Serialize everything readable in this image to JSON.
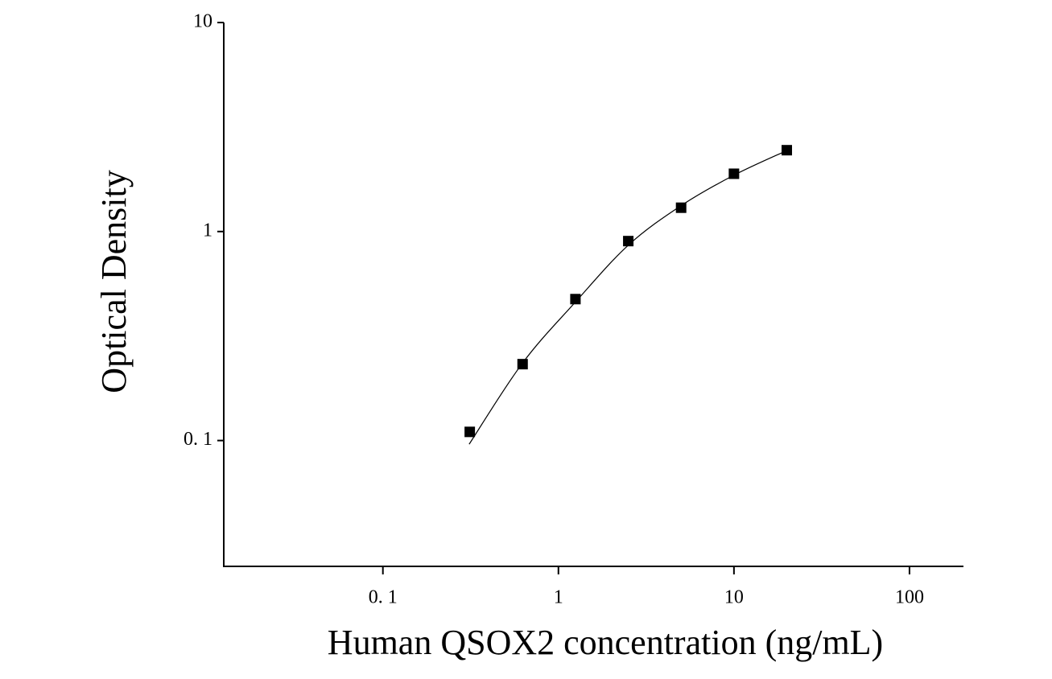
{
  "chart_data": {
    "type": "scatter",
    "xlabel": "Human QSOX2 concentration (ng/mL)",
    "ylabel": "Optical Density",
    "xscale": "log",
    "yscale": "log",
    "x": [
      0.3125,
      0.625,
      1.25,
      2.5,
      5,
      10,
      20
    ],
    "series": [
      {
        "color": "#000000",
        "values": [
          0.11,
          0.232,
          0.475,
          0.9,
          1.3,
          1.89,
          2.45
        ]
      }
    ],
    "fit": {
      "color": "#000000",
      "x": [
        0.31,
        0.625,
        1.25,
        2.5,
        5,
        10,
        20
      ],
      "values": [
        0.096,
        0.235,
        0.46,
        0.86,
        1.33,
        1.86,
        2.44
      ]
    },
    "xlim": [
      0.0124,
      203
    ],
    "ylim": [
      0.025,
      10
    ],
    "xticks": [
      {
        "value": 0.1,
        "label": "0. 1"
      },
      1,
      10,
      100
    ],
    "yticks": [
      {
        "value": 0.1,
        "label": "0. 1"
      },
      1,
      10
    ],
    "grid": false
  }
}
